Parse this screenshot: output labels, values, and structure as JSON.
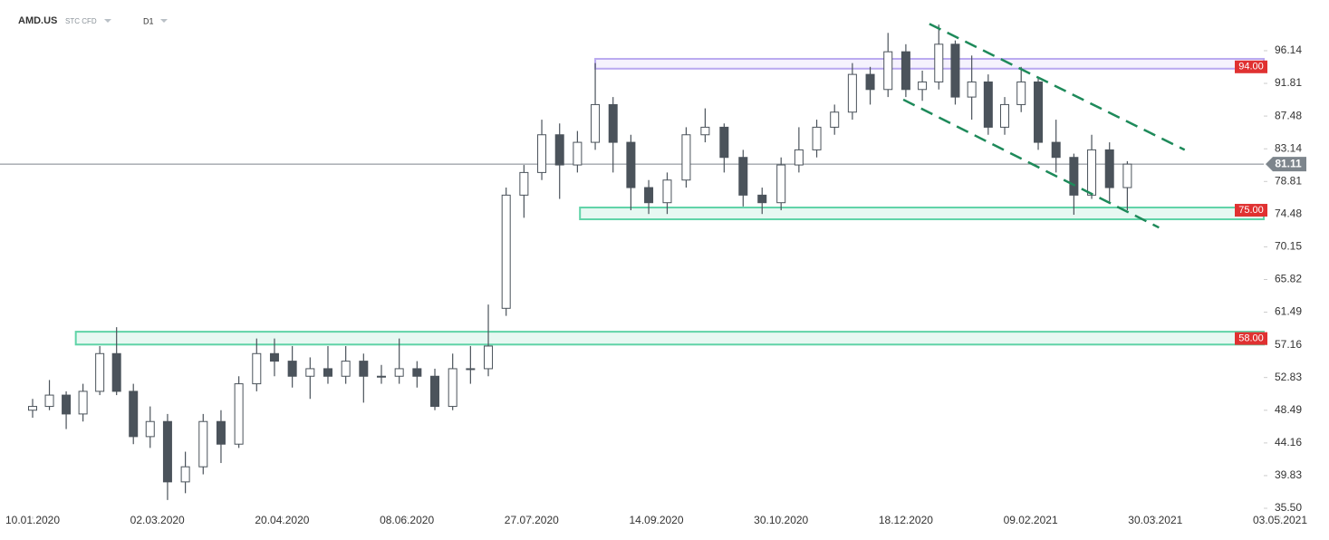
{
  "header": {
    "symbol": "AMD.US",
    "instrument": "STC CFD",
    "interval": "D1"
  },
  "chart_data": {
    "type": "candlestick",
    "x": [
      "2020-01-10",
      "2020-01-17",
      "2020-01-24",
      "2020-01-31",
      "2020-02-07",
      "2020-02-14",
      "2020-02-21",
      "2020-02-28",
      "2020-03-06",
      "2020-03-13",
      "2020-03-20",
      "2020-03-27",
      "2020-04-03",
      "2020-04-10",
      "2020-04-17",
      "2020-04-24",
      "2020-05-01",
      "2020-05-08",
      "2020-05-15",
      "2020-05-22",
      "2020-05-29",
      "2020-06-05",
      "2020-06-12",
      "2020-06-19",
      "2020-06-26",
      "2020-07-03",
      "2020-07-10",
      "2020-07-17",
      "2020-07-24",
      "2020-07-31",
      "2020-08-07",
      "2020-08-14",
      "2020-08-21",
      "2020-08-28",
      "2020-09-04",
      "2020-09-11",
      "2020-09-18",
      "2020-09-25",
      "2020-10-02",
      "2020-10-09",
      "2020-10-16",
      "2020-10-23",
      "2020-10-30",
      "2020-11-06",
      "2020-11-13",
      "2020-11-20",
      "2020-11-27",
      "2020-12-04",
      "2020-12-11",
      "2020-12-18",
      "2020-12-25",
      "2021-01-01",
      "2021-01-08",
      "2021-01-15",
      "2021-01-22",
      "2021-01-29",
      "2021-02-05",
      "2021-02-12",
      "2021-02-19",
      "2021-02-26",
      "2021-03-05",
      "2021-03-12",
      "2021-03-19"
    ],
    "open": [
      48.5,
      49,
      50.5,
      48,
      51,
      56,
      51,
      45,
      47,
      39,
      41,
      47,
      44,
      52,
      56,
      55,
      53,
      54,
      53,
      55,
      53,
      53,
      54,
      53,
      49,
      54,
      54,
      62,
      77,
      80,
      85,
      81,
      84,
      89,
      84,
      78,
      76,
      79,
      85,
      86,
      82,
      77,
      76,
      81,
      83,
      86,
      88,
      93,
      91,
      96,
      91,
      92,
      97,
      90,
      92,
      86,
      89,
      92,
      84,
      82,
      77,
      83,
      78
    ],
    "high": [
      50,
      52.5,
      51,
      52,
      57,
      59.5,
      52,
      49,
      48,
      43,
      48,
      48.5,
      53,
      58,
      58,
      57,
      55.5,
      57,
      57,
      56,
      54.5,
      58,
      55,
      54,
      56,
      57,
      62.5,
      78,
      81,
      87,
      86.5,
      85.5,
      94.5,
      90,
      85,
      79,
      80,
      86,
      88.5,
      86.5,
      83,
      78,
      82,
      86,
      87,
      89,
      94.5,
      94,
      98.5,
      97,
      93.5,
      99.6,
      97.5,
      95.5,
      93,
      90,
      94,
      92.5,
      87,
      82.5,
      85,
      84,
      81.5
    ],
    "low": [
      47.5,
      48.5,
      46,
      47,
      50.5,
      50.5,
      44,
      43.5,
      36.6,
      37.5,
      40,
      41.5,
      43.5,
      51,
      53,
      51.5,
      50,
      52,
      52,
      49.5,
      52,
      52,
      51.5,
      48.5,
      48.5,
      52,
      53,
      61,
      74,
      79,
      76.5,
      80,
      83,
      80,
      75,
      74.5,
      74.5,
      78,
      84,
      80,
      75.5,
      74.5,
      75,
      80,
      82,
      85,
      87,
      89,
      90,
      90,
      89.5,
      91,
      89,
      87,
      85,
      85,
      88,
      83,
      80,
      74.4,
      76.5,
      76,
      75
    ],
    "close": [
      49,
      50.5,
      48,
      51,
      56,
      51,
      45,
      47,
      39,
      41,
      47,
      44,
      52,
      56,
      55,
      53,
      54,
      53,
      55,
      53,
      53,
      54,
      53,
      49,
      54,
      54,
      57,
      77,
      80,
      85,
      81,
      84,
      89,
      84,
      78,
      76,
      79,
      85,
      86,
      82,
      77,
      76,
      81,
      83,
      86,
      88,
      93,
      91,
      96,
      91,
      92,
      97,
      90,
      92,
      86,
      89,
      92,
      84,
      82,
      77,
      83,
      78,
      81.11
    ],
    "up_color": "#ffffff",
    "down_color": "#4b535b",
    "wick_color": "#4b535b",
    "ylim": [
      34.42,
      102.86
    ],
    "yticks": [
      96.14,
      91.81,
      87.48,
      83.14,
      78.81,
      74.48,
      70.15,
      65.82,
      61.49,
      57.16,
      52.83,
      48.49,
      44.16,
      39.83,
      {
        "value": 35.5,
        "label": "35.50"
      }
    ],
    "xticks": [
      {
        "value": "2020-01-10",
        "label": "10.01.2020"
      },
      {
        "value": "2020-03-02",
        "label": "02.03.2020"
      },
      {
        "value": "2020-04-20",
        "label": "20.04.2020"
      },
      {
        "value": "2020-06-08",
        "label": "08.06.2020"
      },
      {
        "value": "2020-07-27",
        "label": "27.07.2020"
      },
      {
        "value": "2020-09-14",
        "label": "14.09.2020"
      },
      {
        "value": "2020-10-30",
        "label": "30.10.2020"
      },
      {
        "value": "2020-12-18",
        "label": "18.12.2020"
      },
      {
        "value": "2021-02-09",
        "label": "09.02.2021"
      },
      {
        "value": "2021-03-30",
        "label": "30.03.2021"
      },
      {
        "value": "2021-05-03",
        "label": "03.05.2021"
      }
    ],
    "zones": [
      {
        "start": "2020-08-21",
        "low": 93.76,
        "high": 95.06,
        "color": "#b9a9f0",
        "level": {
          "value": 94,
          "label": "94.00"
        }
      },
      {
        "start": "2020-08-15",
        "low": 73.8,
        "high": 75.36,
        "color": "#5fd3a7",
        "level": {
          "value": 75,
          "label": "75.00"
        }
      },
      {
        "start": "2020-01-28",
        "low": 57.2,
        "high": 58.9,
        "color": "#5fd3a7",
        "level": {
          "value": 58,
          "label": "58.00"
        }
      }
    ],
    "level_label_color": "#e03131",
    "trendlines": [
      {
        "x": [
          "2020-12-28",
          "2021-04-07"
        ],
        "y": [
          99.7,
          83.0
        ],
        "color": "#1e8a5a"
      },
      {
        "x": [
          "2020-12-17",
          "2021-03-31"
        ],
        "y": [
          89.66,
          72.7
        ],
        "color": "#1e8a5a"
      }
    ],
    "last_price": 81.11,
    "last_price_color": "#7d858c"
  }
}
